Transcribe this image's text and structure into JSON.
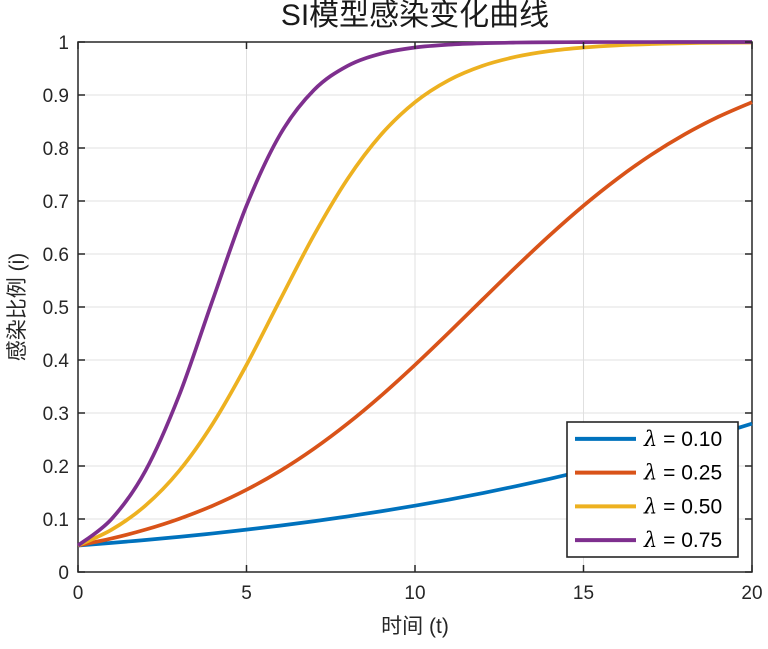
{
  "chart_data": {
    "type": "line",
    "title": "SI模型感染变化曲线",
    "xlabel": "时间 (t)",
    "ylabel": "感染比例 (i)",
    "xlim": [
      0,
      20
    ],
    "ylim": [
      0,
      1
    ],
    "grid": true,
    "legend_position": "south-east",
    "xticks": [
      0,
      5,
      10,
      15,
      20
    ],
    "xtick_labels": [
      "0",
      "5",
      "10",
      "15",
      "20"
    ],
    "yticks": [
      0,
      0.1,
      0.2,
      0.3,
      0.4,
      0.5,
      0.6,
      0.7,
      0.8,
      0.9,
      1
    ],
    "ytick_labels": [
      "0",
      "0.1",
      "0.2",
      "0.3",
      "0.4",
      "0.5",
      "0.6",
      "0.7",
      "0.8",
      "0.9",
      "1"
    ],
    "x": [
      0,
      1,
      2,
      3,
      4,
      5,
      6,
      7,
      8,
      9,
      10,
      11,
      12,
      13,
      14,
      15,
      16,
      17,
      18,
      19,
      20
    ],
    "series": [
      {
        "name": "λ = 0.10",
        "lambda": 0.1,
        "color": "#0072BD",
        "values": [
          0.05,
          0.055,
          0.0604,
          0.0663,
          0.0728,
          0.0799,
          0.0875,
          0.0958,
          0.1049,
          0.1146,
          0.1252,
          0.1365,
          0.1488,
          0.1619,
          0.1759,
          0.1908,
          0.2068,
          0.2236,
          0.2415,
          0.2603,
          0.28
        ]
      },
      {
        "name": "λ = 0.25",
        "lambda": 0.25,
        "color": "#D95319",
        "values": [
          0.05,
          0.0633,
          0.0799,
          0.1003,
          0.1252,
          0.1552,
          0.1908,
          0.2325,
          0.28,
          0.333,
          0.3907,
          0.4515,
          0.5139,
          0.5758,
          0.6354,
          0.6912,
          0.7418,
          0.7868,
          0.8257,
          0.8588,
          0.8865
        ]
      },
      {
        "name": "λ = 0.50",
        "lambda": 0.5,
        "color": "#EDB120",
        "values": [
          0.05,
          0.0799,
          0.1252,
          0.1908,
          0.28,
          0.3907,
          0.5139,
          0.6354,
          0.7418,
          0.8257,
          0.8865,
          0.9279,
          0.955,
          0.9722,
          0.983,
          0.9896,
          0.9937,
          0.9961,
          0.9977,
          0.9986,
          0.9991
        ]
      },
      {
        "name": "λ = 0.75",
        "lambda": 0.75,
        "color": "#7E2F8E",
        "values": [
          0.05,
          0.1003,
          0.1908,
          0.333,
          0.5139,
          0.6912,
          0.8257,
          0.9093,
          0.955,
          0.9782,
          0.9896,
          0.9951,
          0.9977,
          0.9989,
          0.9995,
          0.9998,
          0.9999,
          0.9999,
          1.0,
          1.0,
          1.0
        ]
      }
    ],
    "colors": {
      "axis": "#262626",
      "grid": "#e0e0e0",
      "background": "#ffffff",
      "legend_border": "#262626",
      "legend_background": "#ffffff"
    }
  }
}
